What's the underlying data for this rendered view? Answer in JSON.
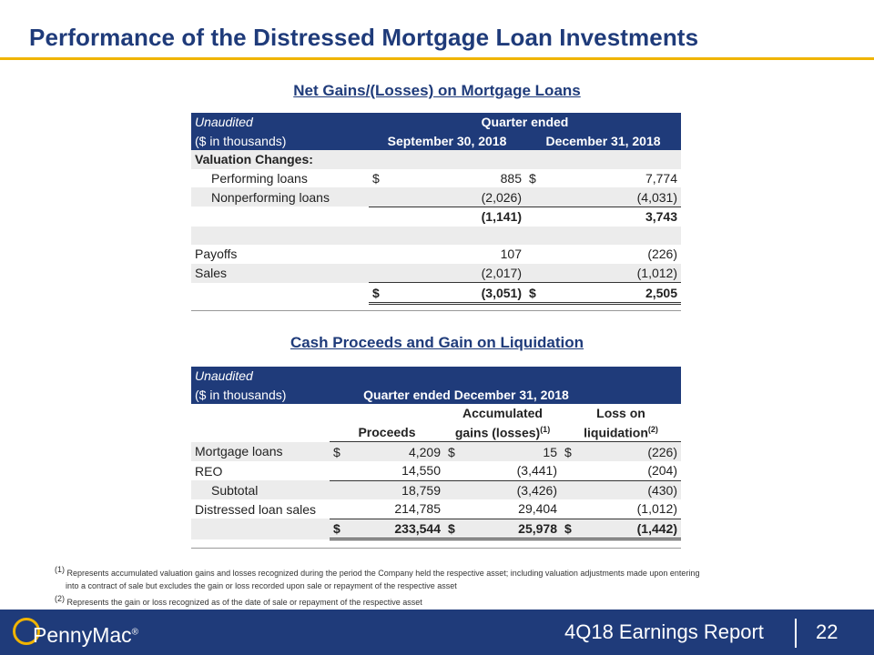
{
  "title": "Performance of the Distressed Mortgage Loan Investments",
  "table1": {
    "heading": "Net Gains/(Losses) on Mortgage Loans",
    "hdr_unaudited": "Unaudited",
    "hdr_quarter_ended": "Quarter ended",
    "hdr_units": "($ in thousands)",
    "col1": "September 30, 2018",
    "col2": "December 31, 2018",
    "section_label": "Valuation Changes:",
    "rows": {
      "performing": {
        "label": "Performing loans",
        "c1_sym": "$",
        "c1": "885",
        "c2_sym": "$",
        "c2": "7,774"
      },
      "nonperforming": {
        "label": "Nonperforming loans",
        "c1": "(2,026)",
        "c2": "(4,031)"
      },
      "subtotal": {
        "c1": "(1,141)",
        "c2": "3,743"
      },
      "payoffs": {
        "label": "Payoffs",
        "c1": "107",
        "c2": "(226)"
      },
      "sales": {
        "label": "Sales",
        "c1": "(2,017)",
        "c2": "(1,012)"
      },
      "total": {
        "c1_sym": "$",
        "c1": "(3,051)",
        "c2_sym": "$",
        "c2": "2,505"
      }
    }
  },
  "table2": {
    "heading": "Cash Proceeds and Gain on Liquidation",
    "hdr_unaudited": "Unaudited",
    "hdr_units": "($ in thousands)",
    "hdr_quarter": "Quarter ended December 31, 2018",
    "col_proceeds": "Proceeds",
    "col_acc_1": "Accumulated",
    "col_acc_2": "gains (losses)",
    "col_acc_sup": "(1)",
    "col_loss_1": "Loss on",
    "col_loss_2": "liquidation",
    "col_loss_sup": "(2)",
    "rows": {
      "mortgage": {
        "label": "Mortgage loans",
        "s1": "$",
        "p": "4,209",
        "s2": "$",
        "a": "15",
        "s3": "$",
        "l": "(226)"
      },
      "reo": {
        "label": "REO",
        "p": "14,550",
        "a": "(3,441)",
        "l": "(204)"
      },
      "subtotal": {
        "label": "Subtotal",
        "p": "18,759",
        "a": "(3,426)",
        "l": "(430)"
      },
      "distressed": {
        "label": "Distressed loan sales",
        "p": "214,785",
        "a": "29,404",
        "l": "(1,012)"
      },
      "total": {
        "s1": "$",
        "p": "233,544",
        "s2": "$",
        "a": "25,978",
        "s3": "$",
        "l": "(1,442)"
      }
    }
  },
  "footnotes": {
    "n1_mark": "(1)",
    "n1_text": "Represents accumulated valuation gains and losses recognized during the period the Company held the respective asset; including valuation adjustments made upon entering",
    "n1_cont": "into a contract of sale but excludes the gain or loss recorded upon sale or repayment of the respective asset",
    "n2_mark": "(2)",
    "n2_text": "Represents the gain or loss recognized as of the date of sale or repayment of the respective asset"
  },
  "footer": {
    "logo_text": "PennyMac",
    "logo_mark": "®",
    "report": "4Q18 Earnings Report",
    "page": "22"
  }
}
